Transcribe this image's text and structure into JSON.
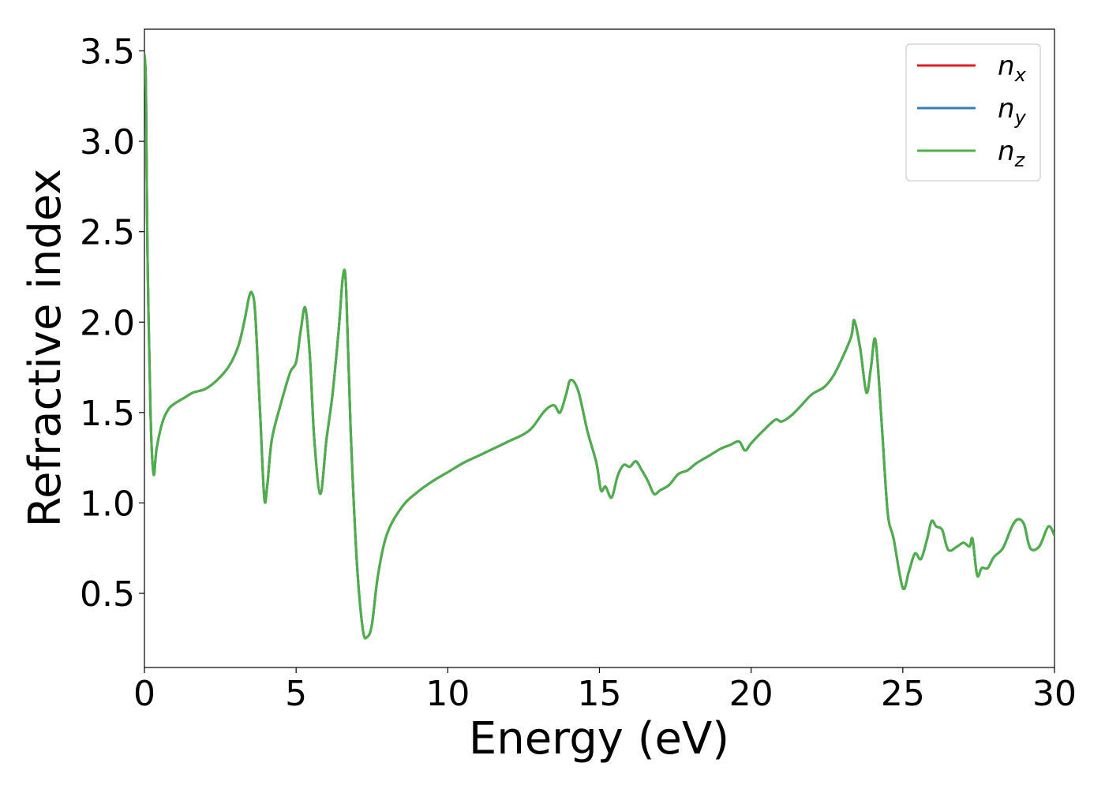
{
  "chart_data": {
    "type": "line",
    "title": "",
    "xlabel": "Energy (eV)",
    "ylabel": "Refractive index",
    "xlim": [
      0,
      30
    ],
    "ylim": [
      0.09,
      3.62
    ],
    "xticks": [
      0,
      5,
      10,
      15,
      20,
      25,
      30
    ],
    "xtick_labels": [
      "0",
      "5",
      "10",
      "15",
      "20",
      "25",
      "30"
    ],
    "yticks": [
      0.5,
      1.0,
      1.5,
      2.0,
      2.5,
      3.0,
      3.5
    ],
    "ytick_labels": [
      "0.5",
      "1.0",
      "1.5",
      "2.0",
      "2.5",
      "3.0",
      "3.5"
    ],
    "grid": false,
    "legend_position": "top-right",
    "series": [
      {
        "name": "n_x",
        "label_base": "n",
        "label_sub": "x",
        "color": "#e41a1c"
      },
      {
        "name": "n_y",
        "label_base": "n",
        "label_sub": "y",
        "color": "#377eb8"
      },
      {
        "name": "n_z",
        "label_base": "n",
        "label_sub": "z",
        "color": "#4daf4a"
      }
    ],
    "x": [
      0.0,
      0.05,
      0.1,
      0.2,
      0.3,
      0.4,
      0.6,
      0.8,
      1.0,
      1.3,
      1.6,
      2.0,
      2.4,
      2.8,
      3.1,
      3.3,
      3.45,
      3.55,
      3.65,
      3.8,
      3.95,
      4.05,
      4.2,
      4.5,
      4.8,
      5.0,
      5.15,
      5.3,
      5.45,
      5.6,
      5.8,
      6.0,
      6.2,
      6.4,
      6.55,
      6.65,
      6.8,
      7.0,
      7.2,
      7.35,
      7.5,
      7.7,
      8.0,
      8.5,
      9.0,
      9.5,
      10.0,
      10.5,
      11.0,
      11.5,
      12.0,
      12.5,
      12.8,
      13.2,
      13.5,
      13.7,
      13.9,
      14.05,
      14.3,
      14.6,
      14.9,
      15.05,
      15.2,
      15.4,
      15.6,
      15.8,
      16.0,
      16.2,
      16.4,
      16.6,
      16.8,
      17.0,
      17.3,
      17.6,
      17.9,
      18.2,
      18.6,
      19.0,
      19.3,
      19.6,
      19.8,
      20.0,
      20.4,
      20.8,
      21.0,
      21.3,
      21.6,
      22.0,
      22.4,
      22.7,
      23.0,
      23.3,
      23.4,
      23.6,
      23.8,
      23.95,
      24.1,
      24.3,
      24.5,
      24.7,
      25.0,
      25.2,
      25.4,
      25.6,
      25.8,
      25.95,
      26.1,
      26.3,
      26.5,
      26.8,
      27.0,
      27.2,
      27.3,
      27.45,
      27.6,
      27.8,
      28.0,
      28.3,
      28.6,
      28.8,
      29.0,
      29.2,
      29.5,
      29.8,
      30.0
    ],
    "values": [
      3.48,
      3.3,
      2.4,
      1.5,
      1.16,
      1.3,
      1.45,
      1.52,
      1.55,
      1.58,
      1.61,
      1.63,
      1.68,
      1.76,
      1.87,
      2.01,
      2.14,
      2.16,
      2.05,
      1.55,
      1.03,
      1.1,
      1.35,
      1.55,
      1.72,
      1.78,
      1.95,
      2.08,
      1.82,
      1.35,
      1.05,
      1.35,
      1.6,
      1.95,
      2.26,
      2.18,
      1.4,
      0.68,
      0.3,
      0.26,
      0.33,
      0.6,
      0.83,
      0.98,
      1.06,
      1.12,
      1.17,
      1.22,
      1.26,
      1.3,
      1.34,
      1.38,
      1.42,
      1.51,
      1.54,
      1.5,
      1.6,
      1.68,
      1.62,
      1.4,
      1.22,
      1.07,
      1.09,
      1.03,
      1.15,
      1.21,
      1.2,
      1.23,
      1.18,
      1.12,
      1.05,
      1.07,
      1.1,
      1.16,
      1.18,
      1.22,
      1.26,
      1.3,
      1.32,
      1.34,
      1.29,
      1.33,
      1.4,
      1.46,
      1.45,
      1.48,
      1.53,
      1.6,
      1.64,
      1.7,
      1.8,
      1.92,
      2.01,
      1.85,
      1.61,
      1.75,
      1.9,
      1.45,
      0.95,
      0.8,
      0.53,
      0.62,
      0.72,
      0.69,
      0.8,
      0.9,
      0.87,
      0.85,
      0.74,
      0.76,
      0.78,
      0.76,
      0.8,
      0.6,
      0.64,
      0.64,
      0.7,
      0.75,
      0.87,
      0.91,
      0.88,
      0.75,
      0.76,
      0.87,
      0.82
    ]
  }
}
